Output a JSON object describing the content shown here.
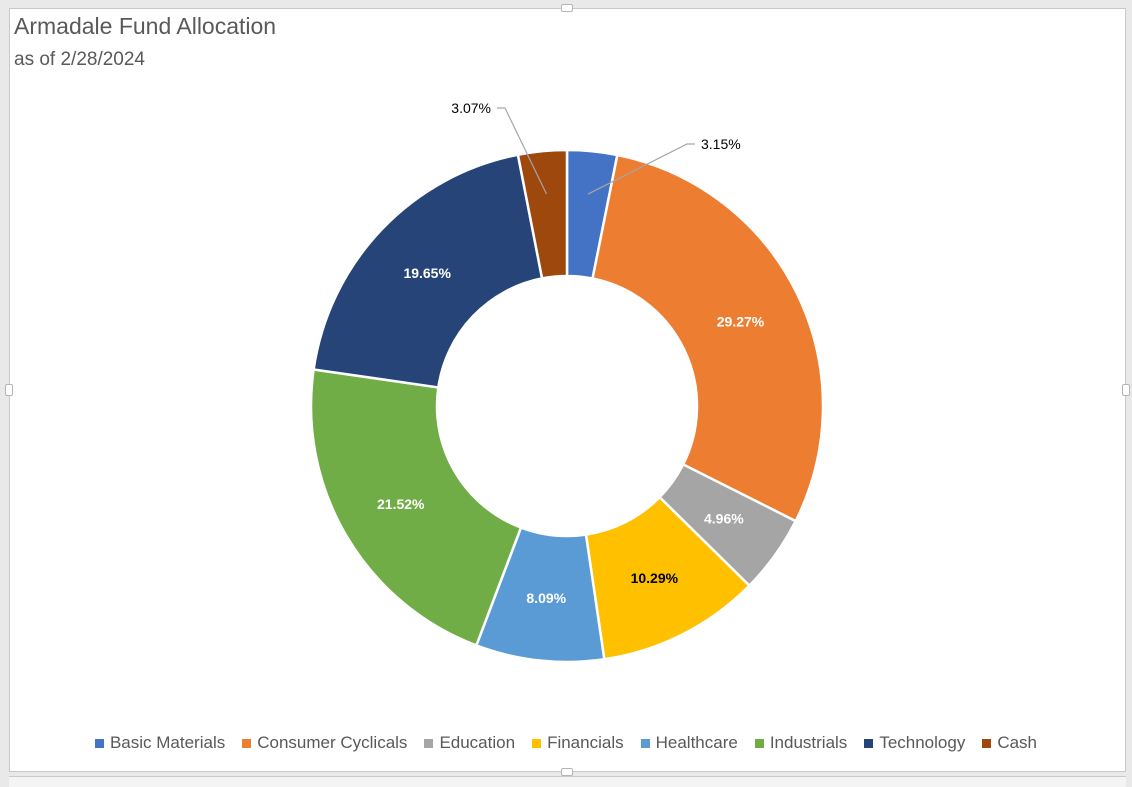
{
  "chart_data": {
    "type": "pie",
    "style": "donut",
    "title": "Armadale Fund Allocation",
    "subtitle": "as of 2/28/2024",
    "legend_position": "bottom",
    "categories": [
      "Basic Materials",
      "Consumer Cyclicals",
      "Education",
      "Financials",
      "Healthcare",
      "Industrials",
      "Technology",
      "Cash"
    ],
    "values": [
      3.15,
      29.27,
      4.96,
      10.29,
      8.09,
      21.52,
      19.65,
      3.07
    ],
    "labels": [
      "3.15%",
      "29.27%",
      "4.96%",
      "10.29%",
      "8.09%",
      "21.52%",
      "19.65%",
      "3.07%"
    ],
    "colors": [
      "#4472C4",
      "#ED7D31",
      "#A5A5A5",
      "#FFC000",
      "#5B9BD5",
      "#70AD47",
      "#264478",
      "#9E480E"
    ],
    "label_colors": [
      "#000000",
      "#ffffff",
      "#ffffff",
      "#000000",
      "#ffffff",
      "#ffffff",
      "#ffffff",
      "#000000"
    ]
  }
}
